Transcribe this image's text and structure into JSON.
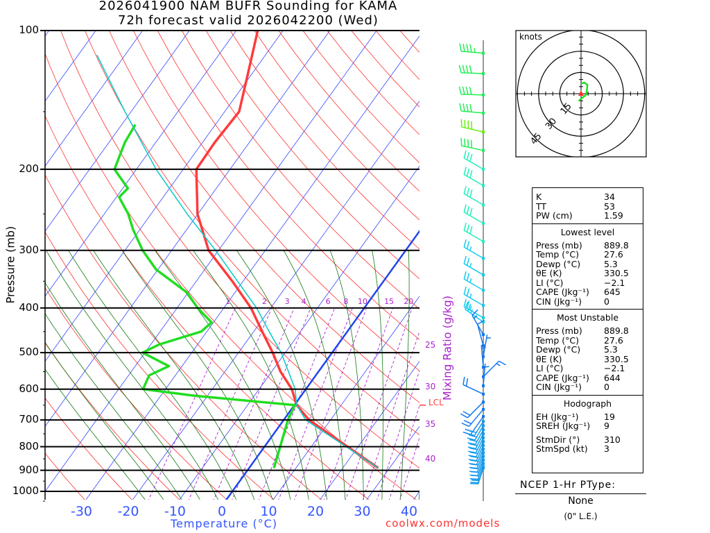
{
  "header": {
    "line1": "2026041900 NAM BUFR Sounding for KAMA",
    "line2": "72h forecast valid 2026042200 (Wed)"
  },
  "credit": "coolwx.com/models",
  "chart_data": {
    "type": "line",
    "subtype": "skew-T log-P",
    "xlabel": "Temperature (°C)",
    "ylabel": "Pressure (mb)",
    "y2label": "Mixing Ratio (g/kg)",
    "x_ticks": [
      -30,
      -20,
      -10,
      0,
      10,
      20,
      30,
      40
    ],
    "y_ticks": [
      100,
      200,
      300,
      400,
      500,
      600,
      700,
      800,
      900,
      1000
    ],
    "ylim": [
      1050,
      100
    ],
    "mixing_ratio_top_labels": [
      "1",
      "2",
      "3",
      "4",
      "6",
      "8",
      "10",
      "15",
      "20"
    ],
    "mixing_ratio_values": [
      1,
      2,
      3,
      4,
      6,
      8,
      10,
      15,
      20
    ],
    "mixing_ratio_side_labels": [
      "25",
      "30",
      "35",
      "40"
    ],
    "lcl": {
      "label": "LCL",
      "pressure": 650
    },
    "freezing_isotherm_c": 0,
    "series": [
      {
        "name": "Temperature",
        "color": "#ff3b3b",
        "points": [
          [
            890,
            27.6
          ],
          [
            700,
            5.4
          ],
          [
            650,
            0.5
          ],
          [
            600,
            -3.0
          ],
          [
            550,
            -8.1
          ],
          [
            500,
            -12.7
          ],
          [
            450,
            -18.2
          ],
          [
            400,
            -24.2
          ],
          [
            350,
            -32.3
          ],
          [
            300,
            -42.1
          ],
          [
            250,
            -50.1
          ],
          [
            200,
            -57.2
          ],
          [
            175,
            -57.4
          ],
          [
            150,
            -56.9
          ],
          [
            125,
            -60.7
          ],
          [
            100,
            -65.4
          ]
        ]
      },
      {
        "name": "Dewpoint",
        "color": "#22dd22",
        "points": [
          [
            890,
            5.3
          ],
          [
            700,
            0.9
          ],
          [
            650,
            0.1
          ],
          [
            620,
            -22.9
          ],
          [
            600,
            -34.8
          ],
          [
            560,
            -35.6
          ],
          [
            535,
            -32.8
          ],
          [
            500,
            -40.5
          ],
          [
            480,
            -38.2
          ],
          [
            450,
            -31.2
          ],
          [
            430,
            -30.4
          ],
          [
            400,
            -35.6
          ],
          [
            370,
            -40.3
          ],
          [
            330,
            -50.4
          ],
          [
            300,
            -56.2
          ],
          [
            270,
            -61.5
          ],
          [
            250,
            -64.9
          ],
          [
            230,
            -69.4
          ],
          [
            220,
            -68.9
          ],
          [
            200,
            -74.7
          ],
          [
            175,
            -76.6
          ],
          [
            160,
            -77.1
          ]
        ]
      },
      {
        "name": "Parcel",
        "color": "#11cccc",
        "points": [
          [
            890,
            27.6
          ],
          [
            700,
            4.7
          ],
          [
            650,
            0.5
          ],
          [
            600,
            -2.3
          ],
          [
            500,
            -10.9
          ],
          [
            450,
            -16.7
          ],
          [
            400,
            -23.0
          ],
          [
            300,
            -40.6
          ],
          [
            250,
            -52.3
          ],
          [
            200,
            -65.8
          ],
          [
            150,
            -81.3
          ],
          [
            113,
            -96.0
          ]
        ]
      }
    ],
    "winds_units": "knots",
    "winds": [
      [
        112,
        275,
        45
      ],
      [
        124,
        272,
        40
      ],
      [
        138,
        272,
        40
      ],
      [
        151,
        275,
        40
      ],
      [
        166,
        283,
        40
      ],
      [
        182,
        282,
        40
      ],
      [
        200,
        300,
        30
      ],
      [
        217,
        300,
        30
      ],
      [
        239,
        300,
        30
      ],
      [
        262,
        300,
        30
      ],
      [
        287,
        300,
        30
      ],
      [
        312,
        300,
        25
      ],
      [
        339,
        300,
        25
      ],
      [
        366,
        300,
        25
      ],
      [
        395,
        300,
        25
      ],
      [
        420,
        300,
        25
      ],
      [
        429,
        305,
        25
      ],
      [
        457,
        330,
        15
      ],
      [
        483,
        345,
        10
      ],
      [
        510,
        10,
        5
      ],
      [
        538,
        355,
        5
      ],
      [
        564,
        45,
        15
      ],
      [
        590,
        5,
        5
      ],
      [
        615,
        295,
        20
      ],
      [
        640,
        225,
        20
      ],
      [
        664,
        220,
        20
      ],
      [
        688,
        215,
        20
      ],
      [
        705,
        212,
        20
      ],
      [
        720,
        210,
        20
      ],
      [
        735,
        208,
        20
      ],
      [
        750,
        207,
        20
      ],
      [
        765,
        206,
        20
      ],
      [
        780,
        205,
        20
      ],
      [
        795,
        204,
        20
      ],
      [
        810,
        203,
        20
      ],
      [
        825,
        202,
        20
      ],
      [
        840,
        201,
        20
      ],
      [
        855,
        200,
        20
      ],
      [
        870,
        199,
        20
      ],
      [
        885,
        198,
        20
      ],
      [
        890,
        198,
        20
      ]
    ],
    "hodograph": {
      "label": "knots",
      "ring_labels": [
        "15",
        "30",
        "45"
      ],
      "rings_kt": [
        15,
        30,
        45
      ],
      "path_uv_kt": [
        [
          -1.7,
          -5.2
        ],
        [
          0.8,
          -3.0
        ],
        [
          3.8,
          -0.5
        ],
        [
          4.5,
          6.2
        ],
        [
          2.5,
          7.8
        ],
        [
          0,
          7.3
        ]
      ],
      "storm_motion_uv_kt": [
        0,
        0
      ]
    }
  },
  "indices": {
    "top": [
      {
        "k": "K",
        "v": "34"
      },
      {
        "k": "TT",
        "v": "53"
      },
      {
        "k": "PW (cm)",
        "v": "1.59"
      }
    ],
    "lowest": {
      "title": "Lowest level",
      "rows": [
        {
          "k": "Press (mb)",
          "v": "889.8"
        },
        {
          "k": "Temp (°C)",
          "v": "27.6"
        },
        {
          "k": "Dewp (°C)",
          "v": "5.3"
        },
        {
          "k": "θE (K)",
          "v": "330.5"
        },
        {
          "k": "LI (°C)",
          "v": "−2.1"
        },
        {
          "k": "CAPE (Jkg⁻¹)",
          "v": "645"
        },
        {
          "k": "CIN (Jkg⁻¹)",
          "v": "0"
        }
      ]
    },
    "unstable": {
      "title": "Most Unstable",
      "rows": [
        {
          "k": "Press (mb)",
          "v": "889.8"
        },
        {
          "k": "Temp (°C)",
          "v": "27.6"
        },
        {
          "k": "Dewp (°C)",
          "v": "5.3"
        },
        {
          "k": "θE (K)",
          "v": "330.5"
        },
        {
          "k": "LI (°C)",
          "v": "−2.1"
        },
        {
          "k": "CAPE (Jkg⁻¹)",
          "v": "644"
        },
        {
          "k": "CIN (Jkg⁻¹)",
          "v": "0"
        }
      ]
    },
    "hodo": {
      "title": "Hodograph",
      "rows": [
        {
          "k": "EH (Jkg⁻¹)",
          "v": "19"
        },
        {
          "k": "SREH (Jkg⁻¹)",
          "v": "9"
        },
        {
          "k": "StmDir (°)",
          "v": "310"
        },
        {
          "k": "StmSpd (kt)",
          "v": "3"
        }
      ]
    }
  },
  "ptype": {
    "title": "NCEP 1-Hr PType:",
    "value": "None",
    "amount": "(0\" L.E.)"
  }
}
